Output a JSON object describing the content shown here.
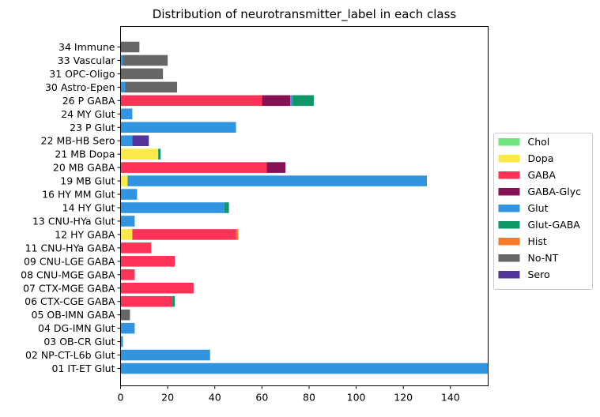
{
  "chart_data": {
    "type": "bar",
    "orientation": "horizontal",
    "stacked": true,
    "title": "Distribution of neurotransmitter_label in each class",
    "xlabel": "",
    "ylabel": "",
    "xlim": [
      0,
      156
    ],
    "xticks": [
      0,
      20,
      40,
      60,
      80,
      100,
      120,
      140
    ],
    "grid": false,
    "legend_position": "right",
    "categories": [
      "01 IT-ET Glut",
      "02 NP-CT-L6b Glut",
      "03 OB-CR Glut",
      "04 DG-IMN Glut",
      "05 OB-IMN GABA",
      "06 CTX-CGE GABA",
      "07 CTX-MGE GABA",
      "08 CNU-MGE GABA",
      "09 CNU-LGE GABA",
      "11 CNU-HYa GABA",
      "12 HY GABA",
      "13 CNU-HYa Glut",
      "14 HY Glut",
      "16 HY MM Glut",
      "19 MB Glut",
      "20 MB GABA",
      "21 MB Dopa",
      "22 MB-HB Sero",
      "23 P Glut",
      "24 MY Glut",
      "26 P GABA",
      "30 Astro-Epen",
      "31 OPC-Oligo",
      "33 Vascular",
      "34 Immune"
    ],
    "series": [
      {
        "name": "Chol",
        "color": "#6ee57e",
        "values": [
          0,
          0,
          0,
          0,
          0,
          0,
          0,
          0,
          0,
          0,
          0,
          0,
          0,
          0,
          0,
          0,
          0,
          0,
          0,
          0,
          0,
          0,
          0,
          0,
          0
        ]
      },
      {
        "name": "Dopa",
        "color": "#fbe94a",
        "values": [
          0,
          0,
          0,
          0,
          0,
          0,
          0,
          0,
          0,
          0,
          5,
          0,
          0,
          0,
          3,
          0,
          16,
          0,
          0,
          0,
          0,
          0,
          0,
          0,
          0
        ]
      },
      {
        "name": "GABA",
        "color": "#ff3358",
        "values": [
          0,
          0,
          0,
          0,
          0,
          22,
          31,
          6,
          23,
          13,
          44,
          0,
          0,
          0,
          0,
          62,
          0,
          0,
          0,
          0,
          60,
          0,
          0,
          0,
          0
        ]
      },
      {
        "name": "GABA-Glyc",
        "color": "#851254",
        "values": [
          0,
          0,
          0,
          0,
          0,
          0,
          0,
          0,
          0,
          0,
          0,
          0,
          0,
          0,
          0,
          8,
          0,
          0,
          0,
          0,
          12,
          0,
          0,
          0,
          0
        ]
      },
      {
        "name": "Glut",
        "color": "#3094e0",
        "values": [
          156,
          38,
          1,
          6,
          0,
          0,
          0,
          0,
          0,
          0,
          0,
          6,
          44,
          7,
          127,
          0,
          0,
          5,
          49,
          5,
          1,
          2,
          0,
          1,
          0
        ]
      },
      {
        "name": "Glut-GABA",
        "color": "#0f9767",
        "values": [
          0,
          0,
          0,
          0,
          0,
          1,
          0,
          0,
          0,
          0,
          0,
          0,
          2,
          0,
          0,
          0,
          1,
          0,
          0,
          0,
          9,
          0,
          0,
          0,
          0
        ]
      },
      {
        "name": "Hist",
        "color": "#f57b2a",
        "values": [
          0,
          0,
          0,
          0,
          0,
          0,
          0,
          0,
          0,
          0,
          1,
          0,
          0,
          0,
          0,
          0,
          0,
          0,
          0,
          0,
          0,
          0,
          0,
          0,
          0
        ]
      },
      {
        "name": "No-NT",
        "color": "#666666",
        "values": [
          0,
          0,
          0,
          0,
          4,
          0,
          0,
          0,
          0,
          0,
          0,
          0,
          0,
          0,
          0,
          0,
          0,
          0,
          0,
          0,
          0,
          22,
          18,
          19,
          8
        ]
      },
      {
        "name": "Sero",
        "color": "#53359a",
        "values": [
          0,
          0,
          0,
          0,
          0,
          0,
          0,
          0,
          0,
          0,
          0,
          0,
          0,
          0,
          0,
          0,
          0,
          7,
          0,
          0,
          0,
          0,
          0,
          0,
          0
        ]
      }
    ]
  }
}
